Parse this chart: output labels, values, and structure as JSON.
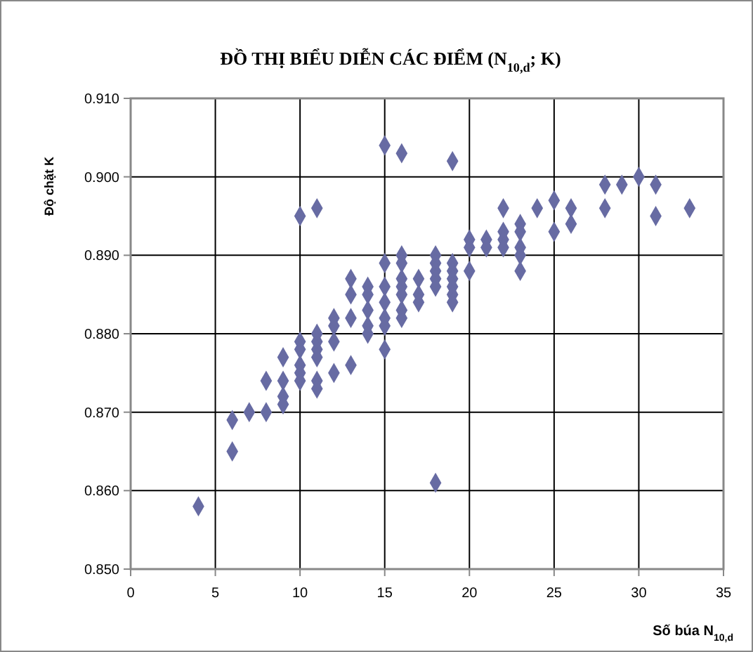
{
  "chart_data": {
    "type": "scatter",
    "title": "ĐỒ THỊ BIỂU DIỄN CÁC ĐIỂM (N$_{10,d}$; K)",
    "xlabel": "Số búa N$_{10,d}$",
    "ylabel": "Độ chặt K",
    "x": [
      4,
      6,
      6,
      7,
      8,
      8,
      9,
      9,
      9,
      9,
      10,
      10,
      10,
      10,
      10,
      10,
      11,
      11,
      11,
      11,
      11,
      11,
      11,
      12,
      12,
      12,
      12,
      13,
      13,
      13,
      13,
      14,
      14,
      14,
      14,
      14,
      15,
      15,
      15,
      15,
      15,
      15,
      15,
      16,
      16,
      16,
      16,
      16,
      16,
      16,
      16,
      17,
      17,
      17,
      18,
      18,
      18,
      18,
      18,
      18,
      19,
      19,
      19,
      19,
      19,
      19,
      19,
      20,
      20,
      20,
      21,
      21,
      22,
      22,
      22,
      22,
      23,
      23,
      23,
      23,
      23,
      24,
      25,
      25,
      26,
      26,
      28,
      28,
      29,
      30,
      31,
      31,
      33
    ],
    "values": [
      0.858,
      0.869,
      0.865,
      0.87,
      0.87,
      0.874,
      0.877,
      0.874,
      0.872,
      0.871,
      0.895,
      0.879,
      0.878,
      0.876,
      0.875,
      0.874,
      0.896,
      0.88,
      0.879,
      0.878,
      0.877,
      0.874,
      0.873,
      0.882,
      0.881,
      0.879,
      0.875,
      0.887,
      0.885,
      0.882,
      0.876,
      0.886,
      0.885,
      0.883,
      0.881,
      0.88,
      0.904,
      0.889,
      0.886,
      0.884,
      0.882,
      0.881,
      0.878,
      0.903,
      0.89,
      0.889,
      0.887,
      0.886,
      0.885,
      0.883,
      0.882,
      0.887,
      0.885,
      0.884,
      0.89,
      0.889,
      0.888,
      0.887,
      0.886,
      0.861,
      0.902,
      0.889,
      0.888,
      0.887,
      0.886,
      0.885,
      0.884,
      0.892,
      0.891,
      0.888,
      0.892,
      0.891,
      0.896,
      0.893,
      0.892,
      0.891,
      0.894,
      0.893,
      0.891,
      0.89,
      0.888,
      0.896,
      0.897,
      0.893,
      0.896,
      0.894,
      0.899,
      0.896,
      0.899,
      0.9,
      0.899,
      0.895,
      0.896
    ],
    "color": "#676ba3",
    "marker": "diamond",
    "grid": true,
    "xlim": [
      0,
      35
    ],
    "xticks": [
      0,
      5,
      10,
      15,
      20,
      25,
      30,
      35
    ],
    "ylim": [
      0.85,
      0.91
    ],
    "yticks": [
      {
        "value": 0.85,
        "label": "0.850"
      },
      {
        "value": 0.86,
        "label": "0.860"
      },
      {
        "value": 0.87,
        "label": "0.870"
      },
      {
        "value": 0.88,
        "label": "0.880"
      },
      {
        "value": 0.89,
        "label": "0.890"
      },
      {
        "value": 0.9,
        "label": "0.900"
      },
      {
        "value": 0.91,
        "label": "0.910"
      }
    ]
  }
}
